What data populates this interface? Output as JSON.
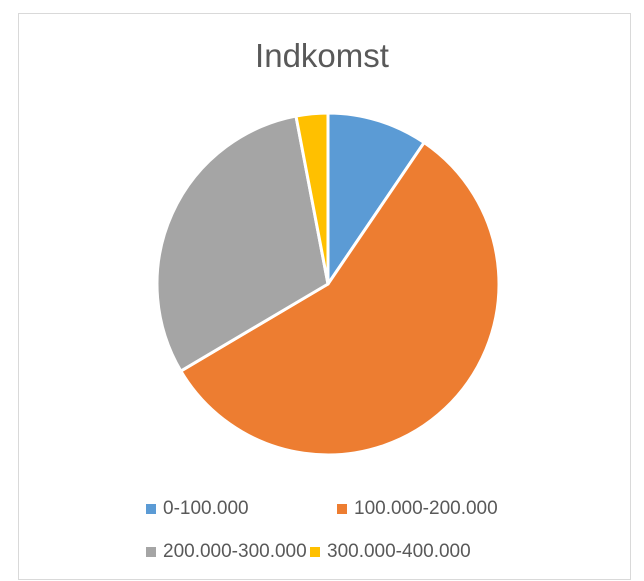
{
  "chart_data": {
    "type": "pie",
    "title": "Indkomst",
    "categories": [
      "0-100.000",
      "100.000-200.000",
      "200.000-300.000",
      "300.000-400.000"
    ],
    "values": [
      9.5,
      57.0,
      30.5,
      3.0
    ],
    "colors": [
      "#5B9BD5",
      "#ED7D31",
      "#A5A5A5",
      "#FFC000"
    ],
    "legend_position": "bottom"
  }
}
